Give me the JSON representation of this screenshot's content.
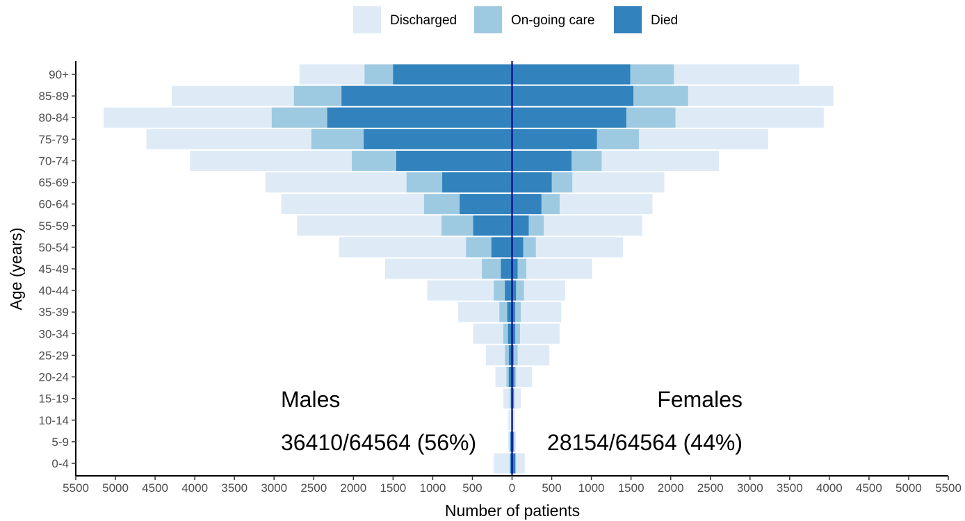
{
  "chart_data": {
    "type": "bar",
    "orientation": "horizontal",
    "stacked": true,
    "title": "",
    "xlabel": "Number of patients",
    "ylabel": "Age (years)",
    "xlim": [
      -5500,
      5500
    ],
    "x_ticks": [
      -5500,
      -5000,
      -4500,
      -4000,
      -3500,
      -3000,
      -2500,
      -2000,
      -1500,
      -1000,
      -500,
      0,
      500,
      1000,
      1500,
      2000,
      2500,
      3000,
      3500,
      4000,
      4500,
      5000,
      5500
    ],
    "x_tick_labels": [
      "5500",
      "5000",
      "4500",
      "4000",
      "3500",
      "3000",
      "2500",
      "2000",
      "1500",
      "1000",
      "500",
      "0",
      "500",
      "1000",
      "1500",
      "2000",
      "2500",
      "3000",
      "3500",
      "4000",
      "4500",
      "5000",
      "5500"
    ],
    "legend_position": "top",
    "categories": [
      "0-4",
      "5-9",
      "10-14",
      "15-19",
      "20-24",
      "25-29",
      "30-34",
      "35-39",
      "40-44",
      "45-49",
      "50-54",
      "55-59",
      "60-64",
      "65-69",
      "70-74",
      "75-79",
      "80-84",
      "85-89",
      "90+"
    ],
    "series": [
      {
        "name": "Discharged",
        "color": "#deebf7",
        "males": [
          200,
          20,
          40,
          80,
          140,
          240,
          380,
          520,
          840,
          1220,
          1600,
          1820,
          1800,
          1780,
          2040,
          2080,
          2120,
          1540,
          820
        ],
        "females": [
          110,
          20,
          20,
          80,
          200,
          400,
          500,
          510,
          520,
          830,
          1100,
          1240,
          1170,
          1160,
          1480,
          1630,
          1870,
          1830,
          1580
        ]
      },
      {
        "name": "On-going care",
        "color": "#9ecae1",
        "males": [
          10,
          10,
          5,
          20,
          30,
          50,
          60,
          100,
          140,
          240,
          320,
          400,
          450,
          450,
          560,
          660,
          700,
          600,
          360
        ],
        "females": [
          10,
          10,
          5,
          10,
          20,
          50,
          60,
          70,
          100,
          110,
          160,
          190,
          230,
          260,
          380,
          530,
          620,
          690,
          550
        ]
      },
      {
        "name": "Died",
        "color": "#3182bd",
        "males": [
          20,
          20,
          5,
          10,
          40,
          40,
          50,
          60,
          90,
          140,
          260,
          490,
          660,
          880,
          1460,
          1870,
          2330,
          2150,
          1500
        ],
        "females": [
          40,
          20,
          10,
          20,
          30,
          20,
          40,
          40,
          50,
          70,
          140,
          210,
          370,
          500,
          750,
          1070,
          1440,
          1530,
          1490
        ]
      }
    ]
  },
  "annotations": {
    "males_label": "Males",
    "females_label": "Females",
    "males_count": "36410/64564 (56%)",
    "females_count": "28154/64564 (44%)"
  }
}
